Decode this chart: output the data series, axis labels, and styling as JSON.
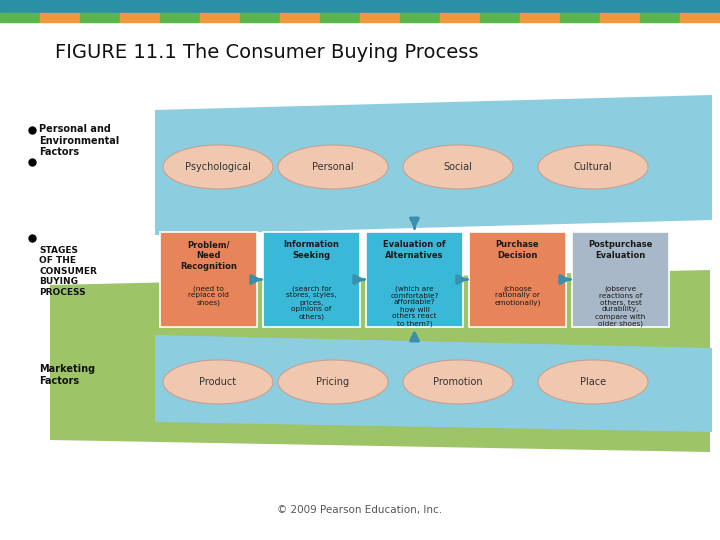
{
  "title": "FIGURE 11.1 The Consumer Buying Process",
  "header_teal_color": "#2b8fa8",
  "stripe_colors": [
    "#5ab54b",
    "#f09840"
  ],
  "bg_color": "#ffffff",
  "green_bg": "#9ec468",
  "blue_panel": "#8ccde0",
  "stage_boxes": [
    {
      "bold": "Problem/\nNeed\nRecognition",
      "sub": "(need to\nreplace old\nshoes)",
      "color": "#e8845a"
    },
    {
      "bold": "Information\nSeeking",
      "sub": "(search for\nstores, styles,\nprices,\nopinions of\nothers)",
      "color": "#3ab8d8"
    },
    {
      "bold": "Evaluation of\nAlternatives",
      "sub": "(which are\ncomfortable?\naffordable?\nhow will\nothers react\nto them?)",
      "color": "#3ab8d8"
    },
    {
      "bold": "Purchase\nDecision",
      "sub": "(choose\nrationally or\nemotionally)",
      "color": "#e8845a"
    },
    {
      "bold": "Postpurchase\nEvaluation",
      "sub": "(observe\nreactions of\nothers, test\ndurability,\ncompare with\nolder shoes)",
      "color": "#a8b8c8"
    }
  ],
  "top_ovals": [
    "Psychological",
    "Personal",
    "Social",
    "Cultural"
  ],
  "bottom_ovals": [
    "Product",
    "Pricing",
    "Promotion",
    "Place"
  ],
  "oval_fill": "#f0c8b0",
  "oval_edge": "#c8a090",
  "stages_label": "STAGES\nOF THE\nCONSUMER\nBUYING\nPROCESS",
  "personal_label": "Personal and\nEnvironmental\nFactors",
  "marketing_label": "Marketing\nFactors",
  "footer": "© 2009 Pearson Education, Inc.",
  "arrow_color": "#3a8fac"
}
